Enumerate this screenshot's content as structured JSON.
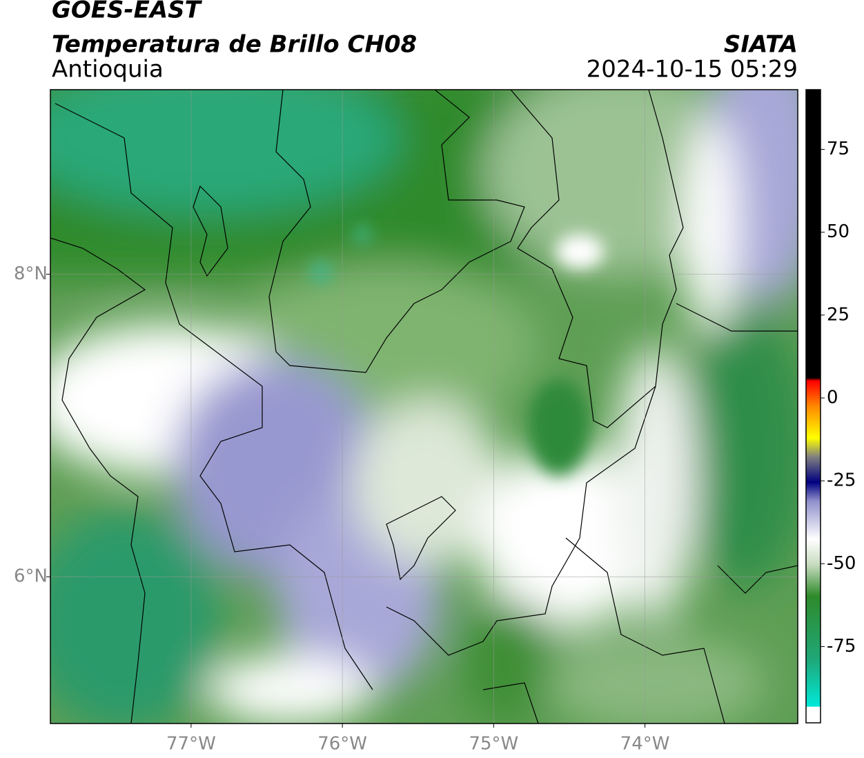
{
  "map": {
    "title": "GOES-EAST",
    "subtitle": "Temperatura de Brillo CH08",
    "region": "Antioquia",
    "source": "SIATA",
    "timestamp": "2024-10-15 05:29",
    "lonlim": [
      -77.93,
      -72.99
    ],
    "latlim": [
      5.03,
      9.22
    ],
    "xticks": [
      {
        "value": -77,
        "label": "77°W"
      },
      {
        "value": -76,
        "label": "76°W"
      },
      {
        "value": -75,
        "label": "75°W"
      },
      {
        "value": -74,
        "label": "74°W"
      }
    ],
    "yticks": [
      {
        "value": 8,
        "label": "8°N"
      },
      {
        "value": 6,
        "label": "6°N"
      }
    ],
    "grid": true,
    "colorbar": {
      "clim": [
        -98,
        93
      ],
      "ticks": [
        75,
        50,
        25,
        0,
        -25,
        -50,
        -75
      ]
    }
  }
}
